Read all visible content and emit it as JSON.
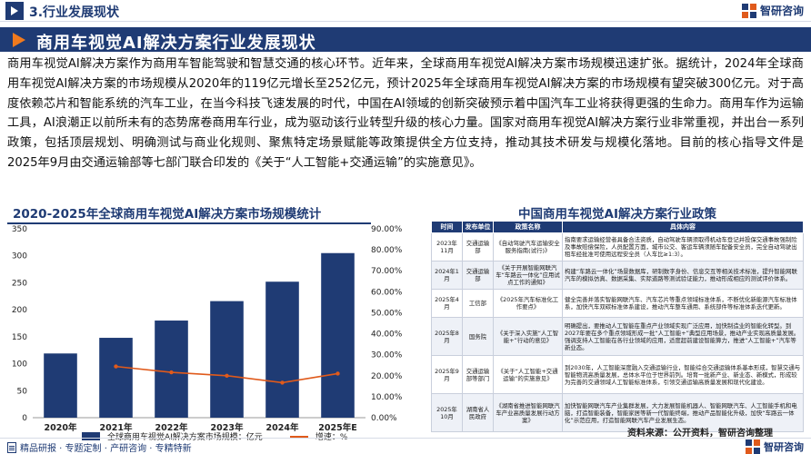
{
  "header": {
    "section_title": "3.行业发展现状",
    "brand": "智研咨询"
  },
  "main_heading": "商用车视觉AI解决方案行业发展现状",
  "intro_paragraph": "商用车视觉AI解决方案作为商用车智能驾驶和智慧交通的核心环节。近年来，全球商用车视觉AI解决方案市场规模迅速扩张。据统计，2024年全球商用车视觉AI解决方案的市场规模从2020年的119亿元增长至252亿元，预计2025年全球商用车视觉AI解决方案的市场规模有望突破300亿元。对于高度依赖芯片和智能系统的汽车工业，在当今科技飞速发展的时代，中国在AI领域的创新突破预示着中国汽车工业将获得更强的生命力。商用车作为运输工具，AI浪潮正以前所未有的态势席卷商用车行业，成为驱动该行业转型升级的核心力量。国家对商用车视觉AI解决方案行业非常重视，并出台一系列政策，包括顶层规划、明确测试与商业化规则、聚焦特定场景赋能等政策提供全方位支持，推动其技术研发与规模化落地。目前的核心指导文件是2025年9月由交通运输部等七部门联合印发的《关于“人工智能+交通运输”的实施意见》。",
  "chart_data": {
    "type": "bar",
    "title": "2020-2025年全球商用车视觉AI解决方案市场规模统计",
    "categories": [
      "2020年",
      "2021年",
      "2022年",
      "2023年",
      "2024年",
      "2025年E"
    ],
    "series": [
      {
        "name": "全球商用车视觉AI解决方案市场规模：亿元",
        "type": "bar",
        "values": [
          119,
          148,
          180,
          216,
          252,
          305
        ]
      },
      {
        "name": "增速：%",
        "type": "line",
        "values": [
          null,
          24.4,
          21.6,
          20.0,
          16.7,
          21.0
        ]
      }
    ],
    "ylim_left": [
      0,
      350
    ],
    "yticks_left": [
      "0",
      "50",
      "100",
      "150",
      "200",
      "250",
      "300",
      "350"
    ],
    "ylim_right": [
      0,
      90
    ],
    "yticks_right": [
      "0.00%",
      "10.00%",
      "20.00%",
      "30.00%",
      "40.00%",
      "50.00%",
      "60.00%",
      "70.00%",
      "80.00%",
      "90.00%"
    ],
    "legend_position": "bottom",
    "colors": {
      "bar": "#1f3b74",
      "line": "#e05a1b"
    }
  },
  "policy": {
    "title": "中国商用车视觉AI解决方案行业政策",
    "headers": [
      "时间",
      "发布单位",
      "政策名称",
      "具体内容"
    ],
    "rows": [
      [
        "2023年11月",
        "交通运输部",
        "《自动驾驶汽车运输安全服务指南(试行)》",
        "指南要求运输经营者具备合法资质，自动驾驶车辆须取得机动车登记并投保交通事故强制险及事故赔偿保险，人员配置方面，城市公交、客运车辆须随车配备安全员，完全自动驾驶出租车经批准可使用远程安全员（人车比≥1:3）。"
      ],
      [
        "2024年1月",
        "交通运输部",
        "《关于开展智能网联汽车“车路云一体化”应用试点工作的通知》",
        "构建“车路云一体化”场景数据库，研制数字身份、信息交互等相关技术标准，提升智能网联汽车的模拟仿真、数据采集、实际道路等测试验证能力，推动形成相应的测试评价体系。"
      ],
      [
        "2025年4月",
        "工信部",
        "《2025年汽车标准化工作要点》",
        "健全完善并落实智能网联汽车、汽车芯片等重点领域标准体系，不断优化新能源汽车标准体系，加快汽车双碳标准体系建设，推动汽车整车通用、系统部件等标准体系迭代更新。"
      ],
      [
        "2025年8月",
        "国务院",
        "《关于深入实施“人工智能+”行动的意见》",
        "明确提出，要推动人工智能在重点产业领域实现广泛应用，加快制造业的智能化转型。到2027年要在多个重点领域形成一批“人工智能+”典型应用场景，推动产业实现高质量发展。强调支持人工智能在各行业领域的应用，适度超前建设智能算力，推进“人工智能+”汽车等新业态。"
      ],
      [
        "2025年9月",
        "交通运输部等部门",
        "《关于“人工智能+交通运输”的实施意见》",
        "到2030年，人工智能深度融入交通运输行业，智能综合交通运输体系基本形成，智慧交通与智能物流高质量发展，总体水平位于世界前列。培育一批新产业、新业态、新模式，形成较为完善的交通领域人工智能标准体系，引领交通运输高质量发展和现代化建设。"
      ],
      [
        "2025年10月",
        "湖南省人民政府",
        "《湖南省推进智能网联汽车产业高质量发展行动方案》",
        "加快智能网联汽车产业集群发展，大力发展智能机器人、智能网联汽车、人工智能手机和电脑，打造智能装备，智能家居等新一代智能终端，推动产品智能化升级，加快“车路云一体化”示范应用，打造智能网联汽车产业发展生态。"
      ]
    ]
  },
  "footer": {
    "tagline": "精品研报 · 专题定制 · 产研咨询 · 专精特新",
    "source": "资料来源：公开资料，智研咨询整理",
    "brand": "智研咨询"
  }
}
